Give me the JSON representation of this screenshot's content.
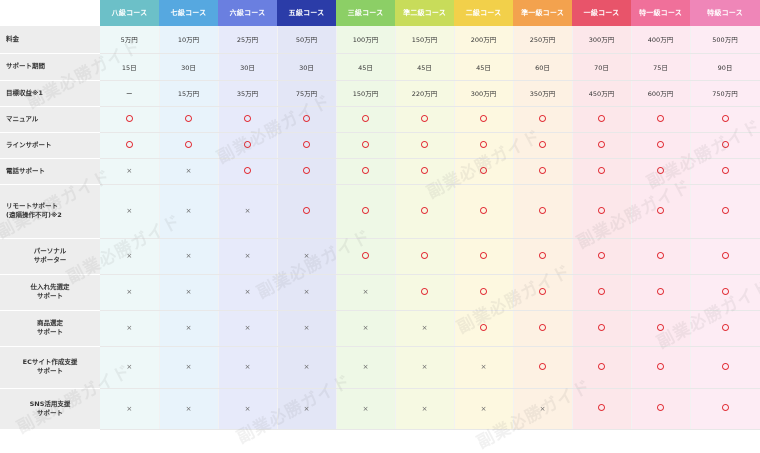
{
  "columns": [
    {
      "label": "八級コース",
      "head": "#6cc0c8",
      "body": "#eef8f8"
    },
    {
      "label": "七級コース",
      "head": "#56a8e0",
      "body": "#e8f3fb"
    },
    {
      "label": "六級コース",
      "head": "#6a7fe0",
      "body": "#e7eafa"
    },
    {
      "label": "五級コース",
      "head": "#2b3ca8",
      "body": "#e3e6f6"
    },
    {
      "label": "三級コース",
      "head": "#8ccf66",
      "body": "#eef8e6"
    },
    {
      "label": "準二級コース",
      "head": "#c8dc5a",
      "body": "#f6f9e2"
    },
    {
      "label": "二級コース",
      "head": "#f2d04a",
      "body": "#fdf8e0"
    },
    {
      "label": "準一級コース",
      "head": "#f3a24e",
      "body": "#fdf1e3"
    },
    {
      "label": "一級コース",
      "head": "#e8546a",
      "body": "#fce7ea"
    },
    {
      "label": "特一級コース",
      "head": "#f0709a",
      "body": "#fde9f0"
    },
    {
      "label": "特級コース",
      "head": "#ef86b8",
      "body": "#fdecf4"
    }
  ],
  "rows": [
    {
      "key": "fee",
      "label": [
        "料金"
      ],
      "align": "left",
      "height": 27,
      "cells": [
        "5万円",
        "10万円",
        "25万円",
        "50万円",
        "100万円",
        "150万円",
        "200万円",
        "250万円",
        "300万円",
        "400万円",
        "500万円"
      ]
    },
    {
      "key": "support-period",
      "label": [
        "サポート期間"
      ],
      "align": "left",
      "height": 27,
      "cells": [
        "15日",
        "30日",
        "30日",
        "30日",
        "45日",
        "45日",
        "45日",
        "60日",
        "70日",
        "75日",
        "90日"
      ]
    },
    {
      "key": "target-revenue",
      "label": [
        "目標収益※1"
      ],
      "align": "left",
      "height": 26,
      "cells": [
        "ー",
        "15万円",
        "35万円",
        "75万円",
        "150万円",
        "220万円",
        "300万円",
        "350万円",
        "450万円",
        "600万円",
        "750万円"
      ]
    },
    {
      "key": "manual",
      "label": [
        "マニュアル"
      ],
      "align": "left",
      "height": 26,
      "cells": [
        "o",
        "o",
        "o",
        "o",
        "o",
        "o",
        "o",
        "o",
        "o",
        "o",
        "o"
      ]
    },
    {
      "key": "line-support",
      "label": [
        "ラインサポート"
      ],
      "align": "left",
      "height": 26,
      "cells": [
        "o",
        "o",
        "o",
        "o",
        "o",
        "o",
        "o",
        "o",
        "o",
        "o",
        "o"
      ]
    },
    {
      "key": "phone-support",
      "label": [
        "電話サポート"
      ],
      "align": "left",
      "height": 26,
      "cells": [
        "x",
        "x",
        "o",
        "o",
        "o",
        "o",
        "o",
        "o",
        "o",
        "o",
        "o"
      ]
    },
    {
      "key": "remote-support",
      "label": [
        "リモートサポート",
        "(遠隔操作不可)※2"
      ],
      "align": "left",
      "height": 54,
      "cells": [
        "x",
        "x",
        "x",
        "o",
        "o",
        "o",
        "o",
        "o",
        "o",
        "o",
        "o"
      ]
    },
    {
      "key": "personal-supporter",
      "label": [
        "パーソナル",
        "サポーター"
      ],
      "align": "center",
      "height": 36,
      "cells": [
        "x",
        "x",
        "x",
        "x",
        "o",
        "o",
        "o",
        "o",
        "o",
        "o",
        "o"
      ]
    },
    {
      "key": "sourcing-support",
      "label": [
        "仕入れ先選定",
        "サポート"
      ],
      "align": "center",
      "height": 36,
      "cells": [
        "x",
        "x",
        "x",
        "x",
        "x",
        "o",
        "o",
        "o",
        "o",
        "o",
        "o"
      ]
    },
    {
      "key": "product-support",
      "label": [
        "商品選定",
        "サポート"
      ],
      "align": "center",
      "height": 36,
      "cells": [
        "x",
        "x",
        "x",
        "x",
        "x",
        "x",
        "o",
        "o",
        "o",
        "o",
        "o"
      ]
    },
    {
      "key": "ec-site-support",
      "label": [
        "ECサイト作成支援",
        "サポート"
      ],
      "align": "center",
      "height": 42,
      "cells": [
        "x",
        "x",
        "x",
        "x",
        "x",
        "x",
        "x",
        "o",
        "o",
        "o",
        "o"
      ]
    },
    {
      "key": "sns-support",
      "label": [
        "SNS活用支援",
        "サポート"
      ],
      "align": "center",
      "height": 41,
      "cells": [
        "x",
        "x",
        "x",
        "x",
        "x",
        "x",
        "x",
        "x",
        "o",
        "o",
        "o"
      ]
    }
  ],
  "marks": {
    "no": "×"
  },
  "watermark": "副業必勝ガイド"
}
